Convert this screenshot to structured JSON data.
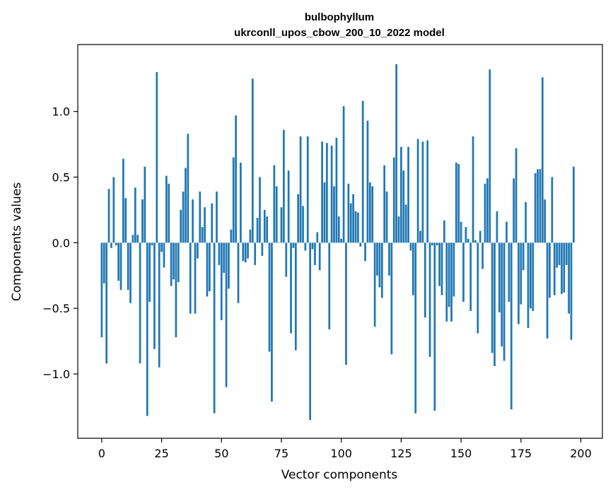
{
  "chart_data": {
    "type": "bar",
    "title_lines": [
      "bulbophyllum",
      "ukrconll_upos_cbow_200_10_2022 model"
    ],
    "xlabel": "Vector components",
    "ylabel": "Components values",
    "xlim": [
      -10,
      209
    ],
    "ylim": [
      -1.49,
      1.51
    ],
    "xticks": [
      0,
      25,
      50,
      75,
      100,
      125,
      150,
      175,
      200
    ],
    "yticks": [
      -1.0,
      -0.5,
      0.0,
      0.5,
      1.0
    ],
    "ytick_labels": [
      "−1.0",
      "−0.5",
      "0.0",
      "0.5",
      "1.0"
    ],
    "bar_color": "#1f77b4",
    "grid": false,
    "values": [
      -0.72,
      -0.31,
      -0.92,
      0.41,
      -0.04,
      0.5,
      -0.02,
      -0.29,
      -0.36,
      0.64,
      0.34,
      -0.36,
      -0.46,
      0.06,
      0.42,
      0.06,
      -0.92,
      0.33,
      0.58,
      -1.32,
      -0.45,
      -0.02,
      -0.81,
      1.3,
      -0.95,
      -0.07,
      -0.19,
      0.51,
      0.45,
      -0.33,
      -0.28,
      -0.72,
      -0.3,
      0.25,
      0.39,
      0.57,
      0.83,
      -0.54,
      0.33,
      -0.54,
      -0.12,
      0.39,
      0.12,
      0.27,
      -0.41,
      -0.37,
      0.3,
      -1.3,
      0.39,
      -0.17,
      -0.59,
      -0.23,
      -1.1,
      -0.35,
      0.1,
      0.65,
      0.97,
      -0.46,
      0.61,
      -0.14,
      -0.15,
      -0.12,
      0.1,
      1.25,
      -0.17,
      0.19,
      0.5,
      -0.1,
      0.25,
      0.2,
      -0.83,
      -1.21,
      0.59,
      0.43,
      0.0,
      0.27,
      0.86,
      -0.26,
      0.55,
      -0.69,
      -0.04,
      -0.82,
      0.37,
      0.81,
      0.28,
      -0.06,
      0.81,
      -1.35,
      -0.05,
      -0.17,
      0.08,
      -0.21,
      0.77,
      0.46,
      0.76,
      -0.66,
      0.74,
      0.43,
      0.8,
      0.2,
      0.03,
      1.04,
      -0.93,
      0.45,
      0.3,
      0.37,
      0.24,
      0.23,
      -0.03,
      1.08,
      -0.14,
      0.93,
      0.46,
      0.43,
      -0.64,
      -0.25,
      -0.34,
      -0.42,
      0.59,
      0.39,
      -0.25,
      -0.85,
      0.65,
      1.36,
      0.2,
      0.73,
      0.55,
      0.29,
      0.73,
      -0.06,
      -0.4,
      -1.3,
      0.79,
      0.09,
      0.77,
      -0.57,
      0.78,
      -0.87,
      -0.02,
      -1.28,
      -0.02,
      -0.33,
      -0.4,
      0.17,
      -0.6,
      -0.49,
      -0.6,
      -0.41,
      0.61,
      0.6,
      0.16,
      -0.45,
      0.12,
      0.03,
      -0.52,
      0.81,
      0.02,
      -0.69,
      0.09,
      -0.2,
      0.45,
      0.49,
      1.32,
      -0.84,
      -0.94,
      0.24,
      -0.53,
      -0.79,
      -0.9,
      0.16,
      -0.45,
      -1.27,
      0.49,
      0.72,
      -0.62,
      -0.47,
      -0.21,
      0.31,
      -0.65,
      -0.5,
      -0.52,
      0.53,
      0.56,
      0.56,
      1.26,
      0.33,
      -0.73,
      -0.42,
      0.5,
      -0.4,
      -0.19,
      -0.17,
      -0.39,
      -0.38,
      -0.17,
      -0.54,
      -0.74,
      0.58
    ]
  }
}
